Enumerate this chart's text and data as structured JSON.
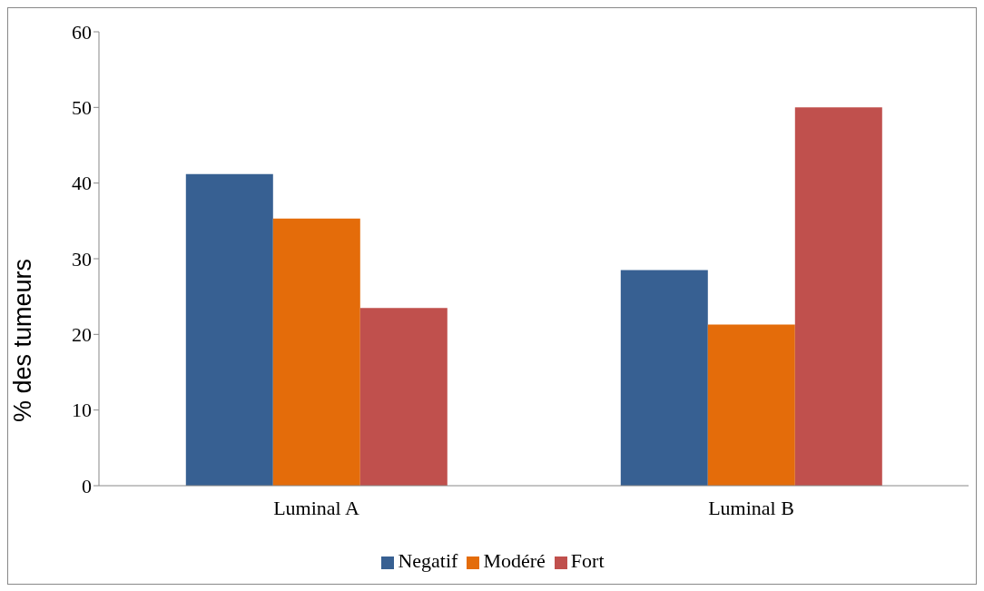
{
  "chart_data": {
    "type": "bar",
    "ylabel": "% des tumeurs",
    "categories": [
      "Luminal A",
      "Luminal B"
    ],
    "series": [
      {
        "name": "Negatif",
        "color": "#376092",
        "values": [
          41.2,
          28.5
        ]
      },
      {
        "name": "Modéré",
        "color": "#e46c0a",
        "values": [
          35.3,
          21.3
        ]
      },
      {
        "name": "Fort",
        "color": "#c0504d",
        "values": [
          23.5,
          50.0
        ]
      }
    ],
    "ylim": [
      0,
      60
    ],
    "yticks": [
      0,
      10,
      20,
      30,
      40,
      50,
      60
    ],
    "grid": false,
    "legend": "bottom"
  }
}
